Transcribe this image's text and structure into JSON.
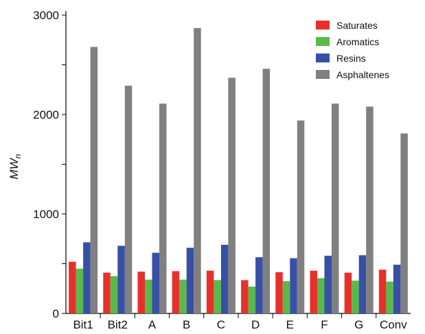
{
  "chart_data": {
    "type": "bar",
    "title": "",
    "xlabel": "",
    "ylabel": "MW",
    "ylabel_subscript": "n",
    "ylim": [
      0,
      3000
    ],
    "yticks": [
      0,
      1000,
      2000,
      3000
    ],
    "categories": [
      "Bit1",
      "Bit2",
      "A",
      "B",
      "C",
      "D",
      "E",
      "F",
      "G",
      "Conv"
    ],
    "series": [
      {
        "name": "Saturates",
        "color": "#e8302b",
        "values": [
          520,
          410,
          420,
          425,
          430,
          335,
          415,
          430,
          410,
          440
        ]
      },
      {
        "name": "Aromatics",
        "color": "#5ab94a",
        "values": [
          450,
          375,
          340,
          340,
          335,
          270,
          325,
          355,
          330,
          320
        ]
      },
      {
        "name": "Resins",
        "color": "#3750a6",
        "values": [
          715,
          680,
          610,
          660,
          690,
          565,
          555,
          580,
          585,
          490
        ]
      },
      {
        "name": "Asphaltenes",
        "color": "#808080",
        "values": [
          2680,
          2290,
          2110,
          2870,
          2370,
          2460,
          1940,
          2110,
          2080,
          1810
        ]
      }
    ],
    "legend_position": "top-right",
    "grid": false
  }
}
